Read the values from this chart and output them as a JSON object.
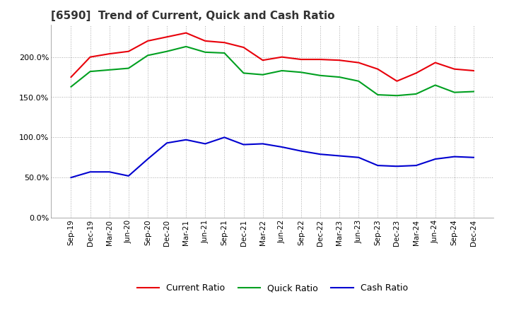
{
  "title": "[6590]  Trend of Current, Quick and Cash Ratio",
  "background_color": "#ffffff",
  "grid_color": "#aaaaaa",
  "ylim": [
    0,
    240
  ],
  "yticks": [
    0,
    50,
    100,
    150,
    200
  ],
  "x_labels": [
    "Sep-19",
    "Dec-19",
    "Mar-20",
    "Jun-20",
    "Sep-20",
    "Dec-20",
    "Mar-21",
    "Jun-21",
    "Sep-21",
    "Dec-21",
    "Mar-22",
    "Jun-22",
    "Sep-22",
    "Dec-22",
    "Mar-23",
    "Jun-23",
    "Sep-23",
    "Dec-23",
    "Mar-24",
    "Jun-24",
    "Sep-24",
    "Dec-24"
  ],
  "current_ratio": [
    175,
    200,
    204,
    207,
    220,
    225,
    230,
    220,
    218,
    212,
    196,
    200,
    197,
    197,
    196,
    193,
    185,
    170,
    180,
    193,
    185,
    183
  ],
  "quick_ratio": [
    163,
    182,
    184,
    186,
    202,
    207,
    213,
    206,
    205,
    180,
    178,
    183,
    181,
    177,
    175,
    170,
    153,
    152,
    154,
    165,
    156,
    157
  ],
  "cash_ratio": [
    50,
    57,
    57,
    52,
    73,
    93,
    97,
    92,
    100,
    91,
    92,
    88,
    83,
    79,
    77,
    75,
    65,
    64,
    65,
    73,
    76,
    75
  ],
  "current_color": "#e8000a",
  "quick_color": "#00a020",
  "cash_color": "#0000d0",
  "line_width": 1.5,
  "title_fontsize": 11,
  "legend_labels": [
    "Current Ratio",
    "Quick Ratio",
    "Cash Ratio"
  ],
  "legend_ncol": 3
}
